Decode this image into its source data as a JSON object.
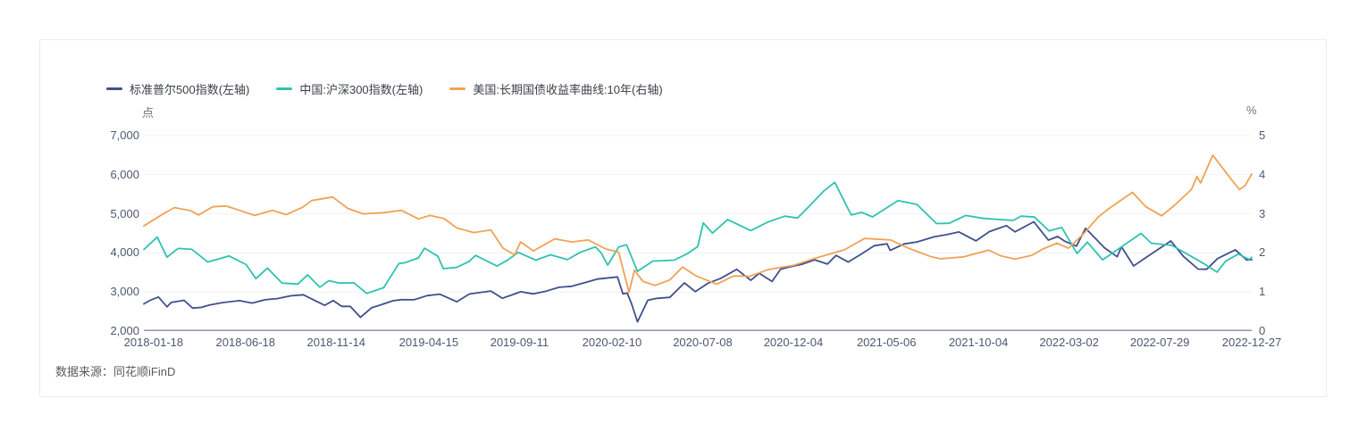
{
  "source_note": "数据来源：同花顺iFinD",
  "colors": {
    "gridline": "#eef0f4",
    "axis_line": "#8e96a9",
    "axis_text": "#4e5870",
    "sp500": "#434f8c",
    "csi300": "#2ec3b1",
    "treasury": "#f0a255",
    "card_border": "#ececec",
    "background": "#ffffff"
  },
  "chart_data": {
    "type": "line",
    "title": "",
    "legend_position": "top-left",
    "grid": true,
    "x_range": [
      "2018-01-02",
      "2022-12-27"
    ],
    "x_ticks": [
      "2018-01-18",
      "2018-06-18",
      "2018-11-14",
      "2019-04-15",
      "2019-09-11",
      "2020-02-10",
      "2020-07-08",
      "2020-12-04",
      "2021-05-06",
      "2021-10-04",
      "2022-03-02",
      "2022-07-29",
      "2022-12-27"
    ],
    "left_axis": {
      "unit": "点",
      "min": 2000,
      "max": 7000,
      "ticks": [
        {
          "value": 7000,
          "label": "7,000"
        },
        {
          "value": 6000,
          "label": "6,000"
        },
        {
          "value": 5000,
          "label": "5,000"
        },
        {
          "value": 4000,
          "label": "4,000"
        },
        {
          "value": 3000,
          "label": "3,000"
        },
        {
          "value": 2000,
          "label": "2,000"
        }
      ]
    },
    "right_axis": {
      "unit": "%",
      "min": 0,
      "max": 5,
      "ticks": [
        {
          "value": 5,
          "label": "5"
        },
        {
          "value": 4,
          "label": "4"
        },
        {
          "value": 3,
          "label": "3"
        },
        {
          "value": 2,
          "label": "2"
        },
        {
          "value": 1,
          "label": "1"
        },
        {
          "value": 0,
          "label": "0"
        }
      ]
    },
    "series": [
      {
        "id": "sp500",
        "name": "标准普尔500指数(左轴)",
        "axis": "left",
        "color": "#434f8c",
        "points": [
          [
            "2018-01-02",
            2696
          ],
          [
            "2018-01-12",
            2786
          ],
          [
            "2018-01-26",
            2873
          ],
          [
            "2018-02-09",
            2620
          ],
          [
            "2018-02-16",
            2732
          ],
          [
            "2018-03-09",
            2787
          ],
          [
            "2018-03-23",
            2588
          ],
          [
            "2018-04-06",
            2604
          ],
          [
            "2018-04-20",
            2670
          ],
          [
            "2018-05-11",
            2728
          ],
          [
            "2018-06-08",
            2779
          ],
          [
            "2018-06-29",
            2718
          ],
          [
            "2018-07-20",
            2802
          ],
          [
            "2018-08-10",
            2833
          ],
          [
            "2018-08-31",
            2902
          ],
          [
            "2018-09-21",
            2930
          ],
          [
            "2018-10-12",
            2767
          ],
          [
            "2018-10-26",
            2659
          ],
          [
            "2018-11-09",
            2781
          ],
          [
            "2018-11-23",
            2632
          ],
          [
            "2018-12-07",
            2633
          ],
          [
            "2018-12-24",
            2351
          ],
          [
            "2019-01-11",
            2596
          ],
          [
            "2019-01-25",
            2665
          ],
          [
            "2019-02-15",
            2776
          ],
          [
            "2019-03-01",
            2803
          ],
          [
            "2019-03-22",
            2801
          ],
          [
            "2019-04-12",
            2907
          ],
          [
            "2019-05-03",
            2946
          ],
          [
            "2019-05-31",
            2752
          ],
          [
            "2019-06-21",
            2950
          ],
          [
            "2019-07-26",
            3026
          ],
          [
            "2019-08-14",
            2841
          ],
          [
            "2019-08-30",
            2926
          ],
          [
            "2019-09-13",
            3007
          ],
          [
            "2019-10-04",
            2952
          ],
          [
            "2019-10-25",
            3023
          ],
          [
            "2019-11-15",
            3120
          ],
          [
            "2019-12-06",
            3146
          ],
          [
            "2019-12-27",
            3240
          ],
          [
            "2020-01-17",
            3330
          ],
          [
            "2020-02-19",
            3386
          ],
          [
            "2020-02-28",
            2954
          ],
          [
            "2020-03-06",
            2972
          ],
          [
            "2020-03-13",
            2711
          ],
          [
            "2020-03-23",
            2237
          ],
          [
            "2020-04-09",
            2790
          ],
          [
            "2020-04-24",
            2837
          ],
          [
            "2020-05-15",
            2864
          ],
          [
            "2020-06-08",
            3232
          ],
          [
            "2020-06-26",
            3009
          ],
          [
            "2020-07-17",
            3225
          ],
          [
            "2020-08-07",
            3351
          ],
          [
            "2020-09-02",
            3581
          ],
          [
            "2020-09-25",
            3298
          ],
          [
            "2020-10-09",
            3477
          ],
          [
            "2020-10-30",
            3270
          ],
          [
            "2020-11-13",
            3585
          ],
          [
            "2020-11-27",
            3638
          ],
          [
            "2020-12-18",
            3709
          ],
          [
            "2021-01-08",
            3825
          ],
          [
            "2021-01-29",
            3714
          ],
          [
            "2021-02-12",
            3935
          ],
          [
            "2021-03-04",
            3768
          ],
          [
            "2021-03-26",
            3975
          ],
          [
            "2021-04-16",
            4185
          ],
          [
            "2021-05-07",
            4233
          ],
          [
            "2021-05-12",
            4063
          ],
          [
            "2021-06-04",
            4230
          ],
          [
            "2021-06-25",
            4281
          ],
          [
            "2021-07-23",
            4412
          ],
          [
            "2021-08-13",
            4468
          ],
          [
            "2021-09-02",
            4537
          ],
          [
            "2021-09-30",
            4308
          ],
          [
            "2021-10-22",
            4545
          ],
          [
            "2021-11-19",
            4698
          ],
          [
            "2021-12-03",
            4538
          ],
          [
            "2022-01-03",
            4797
          ],
          [
            "2022-01-27",
            4327
          ],
          [
            "2022-02-11",
            4419
          ],
          [
            "2022-02-24",
            4289
          ],
          [
            "2022-03-14",
            4173
          ],
          [
            "2022-03-29",
            4631
          ],
          [
            "2022-04-29",
            4132
          ],
          [
            "2022-05-20",
            3901
          ],
          [
            "2022-05-27",
            4158
          ],
          [
            "2022-06-16",
            3667
          ],
          [
            "2022-07-08",
            3899
          ],
          [
            "2022-08-16",
            4305
          ],
          [
            "2022-09-06",
            3908
          ],
          [
            "2022-09-30",
            3586
          ],
          [
            "2022-10-14",
            3583
          ],
          [
            "2022-11-01",
            3856
          ],
          [
            "2022-11-30",
            4080
          ],
          [
            "2022-12-19",
            3817
          ],
          [
            "2022-12-27",
            3829
          ]
        ]
      },
      {
        "id": "csi300",
        "name": "中国:沪深300指数(左轴)",
        "axis": "left",
        "color": "#2ec3b1",
        "points": [
          [
            "2018-01-02",
            4087
          ],
          [
            "2018-01-24",
            4403
          ],
          [
            "2018-02-09",
            3890
          ],
          [
            "2018-02-27",
            4114
          ],
          [
            "2018-03-22",
            4091
          ],
          [
            "2018-04-17",
            3766
          ],
          [
            "2018-05-22",
            3923
          ],
          [
            "2018-06-19",
            3701
          ],
          [
            "2018-07-05",
            3342
          ],
          [
            "2018-07-24",
            3612
          ],
          [
            "2018-08-17",
            3229
          ],
          [
            "2018-09-12",
            3204
          ],
          [
            "2018-09-28",
            3439
          ],
          [
            "2018-10-18",
            3124
          ],
          [
            "2018-11-02",
            3290
          ],
          [
            "2018-11-19",
            3228
          ],
          [
            "2018-12-13",
            3236
          ],
          [
            "2019-01-03",
            2964
          ],
          [
            "2019-01-31",
            3109
          ],
          [
            "2019-02-25",
            3729
          ],
          [
            "2019-03-07",
            3750
          ],
          [
            "2019-03-29",
            3872
          ],
          [
            "2019-04-08",
            4120
          ],
          [
            "2019-04-30",
            3913
          ],
          [
            "2019-05-09",
            3599
          ],
          [
            "2019-05-31",
            3630
          ],
          [
            "2019-06-20",
            3779
          ],
          [
            "2019-07-01",
            3936
          ],
          [
            "2019-08-05",
            3664
          ],
          [
            "2019-08-23",
            3820
          ],
          [
            "2019-09-09",
            4013
          ],
          [
            "2019-10-08",
            3814
          ],
          [
            "2019-11-01",
            3952
          ],
          [
            "2019-11-29",
            3829
          ],
          [
            "2019-12-20",
            4017
          ],
          [
            "2020-01-14",
            4155
          ],
          [
            "2020-01-23",
            4004
          ],
          [
            "2020-02-03",
            3688
          ],
          [
            "2020-02-21",
            4150
          ],
          [
            "2020-03-05",
            4207
          ],
          [
            "2020-03-23",
            3530
          ],
          [
            "2020-04-17",
            3789
          ],
          [
            "2020-05-22",
            3814
          ],
          [
            "2020-06-12",
            3972
          ],
          [
            "2020-06-30",
            4164
          ],
          [
            "2020-07-09",
            4770
          ],
          [
            "2020-07-24",
            4506
          ],
          [
            "2020-08-18",
            4851
          ],
          [
            "2020-09-25",
            4570
          ],
          [
            "2020-10-23",
            4791
          ],
          [
            "2020-11-20",
            4940
          ],
          [
            "2020-12-11",
            4892
          ],
          [
            "2020-12-31",
            5211
          ],
          [
            "2021-01-22",
            5570
          ],
          [
            "2021-02-10",
            5807
          ],
          [
            "2021-03-09",
            4970
          ],
          [
            "2021-03-26",
            5038
          ],
          [
            "2021-04-13",
            4923
          ],
          [
            "2021-05-25",
            5340
          ],
          [
            "2021-06-25",
            5240
          ],
          [
            "2021-07-27",
            4751
          ],
          [
            "2021-08-17",
            4759
          ],
          [
            "2021-09-13",
            4960
          ],
          [
            "2021-10-12",
            4883
          ],
          [
            "2021-11-30",
            4832
          ],
          [
            "2021-12-13",
            4940
          ],
          [
            "2022-01-04",
            4917
          ],
          [
            "2022-01-28",
            4563
          ],
          [
            "2022-02-18",
            4651
          ],
          [
            "2022-03-15",
            3984
          ],
          [
            "2022-04-01",
            4276
          ],
          [
            "2022-04-26",
            3825
          ],
          [
            "2022-05-20",
            4077
          ],
          [
            "2022-06-28",
            4500
          ],
          [
            "2022-07-15",
            4248
          ],
          [
            "2022-08-18",
            4191
          ],
          [
            "2022-09-16",
            3933
          ],
          [
            "2022-10-10",
            3720
          ],
          [
            "2022-10-31",
            3508
          ],
          [
            "2022-11-14",
            3788
          ],
          [
            "2022-12-05",
            3970
          ],
          [
            "2022-12-23",
            3828
          ],
          [
            "2022-12-27",
            3887
          ]
        ]
      },
      {
        "id": "treasury10y",
        "name": "美国:长期国债收益率曲线:10年(右轴)",
        "axis": "right",
        "color": "#f0a255",
        "points": [
          [
            "2018-01-02",
            2.69
          ],
          [
            "2018-02-02",
            2.99
          ],
          [
            "2018-02-21",
            3.16
          ],
          [
            "2018-03-20",
            3.08
          ],
          [
            "2018-04-02",
            2.97
          ],
          [
            "2018-04-25",
            3.18
          ],
          [
            "2018-05-17",
            3.2
          ],
          [
            "2018-06-06",
            3.1
          ],
          [
            "2018-07-03",
            2.96
          ],
          [
            "2018-08-01",
            3.09
          ],
          [
            "2018-08-24",
            2.98
          ],
          [
            "2018-09-20",
            3.17
          ],
          [
            "2018-10-05",
            3.34
          ],
          [
            "2018-11-08",
            3.43
          ],
          [
            "2018-12-03",
            3.14
          ],
          [
            "2018-12-28",
            3.0
          ],
          [
            "2019-01-31",
            3.03
          ],
          [
            "2019-03-01",
            3.09
          ],
          [
            "2019-03-29",
            2.87
          ],
          [
            "2019-04-17",
            2.96
          ],
          [
            "2019-05-10",
            2.88
          ],
          [
            "2019-05-31",
            2.64
          ],
          [
            "2019-06-28",
            2.52
          ],
          [
            "2019-07-26",
            2.59
          ],
          [
            "2019-08-15",
            2.12
          ],
          [
            "2019-09-03",
            1.95
          ],
          [
            "2019-09-13",
            2.28
          ],
          [
            "2019-10-04",
            2.05
          ],
          [
            "2019-11-08",
            2.36
          ],
          [
            "2019-12-06",
            2.28
          ],
          [
            "2020-01-02",
            2.33
          ],
          [
            "2020-01-31",
            2.1
          ],
          [
            "2020-02-21",
            2.02
          ],
          [
            "2020-03-09",
            0.99
          ],
          [
            "2020-03-18",
            1.56
          ],
          [
            "2020-04-01",
            1.27
          ],
          [
            "2020-04-21",
            1.17
          ],
          [
            "2020-05-15",
            1.31
          ],
          [
            "2020-06-05",
            1.64
          ],
          [
            "2020-06-26",
            1.42
          ],
          [
            "2020-07-31",
            1.2
          ],
          [
            "2020-08-28",
            1.41
          ],
          [
            "2020-09-23",
            1.4
          ],
          [
            "2020-10-23",
            1.57
          ],
          [
            "2020-11-10",
            1.62
          ],
          [
            "2020-12-04",
            1.68
          ],
          [
            "2021-01-12",
            1.88
          ],
          [
            "2021-02-26",
            2.08
          ],
          [
            "2021-03-31",
            2.37
          ],
          [
            "2021-05-13",
            2.33
          ],
          [
            "2021-06-11",
            2.12
          ],
          [
            "2021-07-19",
            1.9
          ],
          [
            "2021-08-03",
            1.85
          ],
          [
            "2021-09-10",
            1.9
          ],
          [
            "2021-10-21",
            2.07
          ],
          [
            "2021-11-09",
            1.93
          ],
          [
            "2021-12-03",
            1.84
          ],
          [
            "2021-12-31",
            1.94
          ],
          [
            "2022-01-18",
            2.1
          ],
          [
            "2022-02-10",
            2.25
          ],
          [
            "2022-03-01",
            2.12
          ],
          [
            "2022-03-25",
            2.48
          ],
          [
            "2022-04-19",
            2.92
          ],
          [
            "2022-05-06",
            3.13
          ],
          [
            "2022-06-14",
            3.55
          ],
          [
            "2022-07-06",
            3.18
          ],
          [
            "2022-08-01",
            2.95
          ],
          [
            "2022-08-22",
            3.22
          ],
          [
            "2022-09-19",
            3.62
          ],
          [
            "2022-09-28",
            3.95
          ],
          [
            "2022-10-04",
            3.79
          ],
          [
            "2022-10-24",
            4.5
          ],
          [
            "2022-11-10",
            4.15
          ],
          [
            "2022-11-25",
            3.85
          ],
          [
            "2022-12-07",
            3.62
          ],
          [
            "2022-12-16",
            3.72
          ],
          [
            "2022-12-27",
            4.02
          ]
        ]
      }
    ]
  }
}
